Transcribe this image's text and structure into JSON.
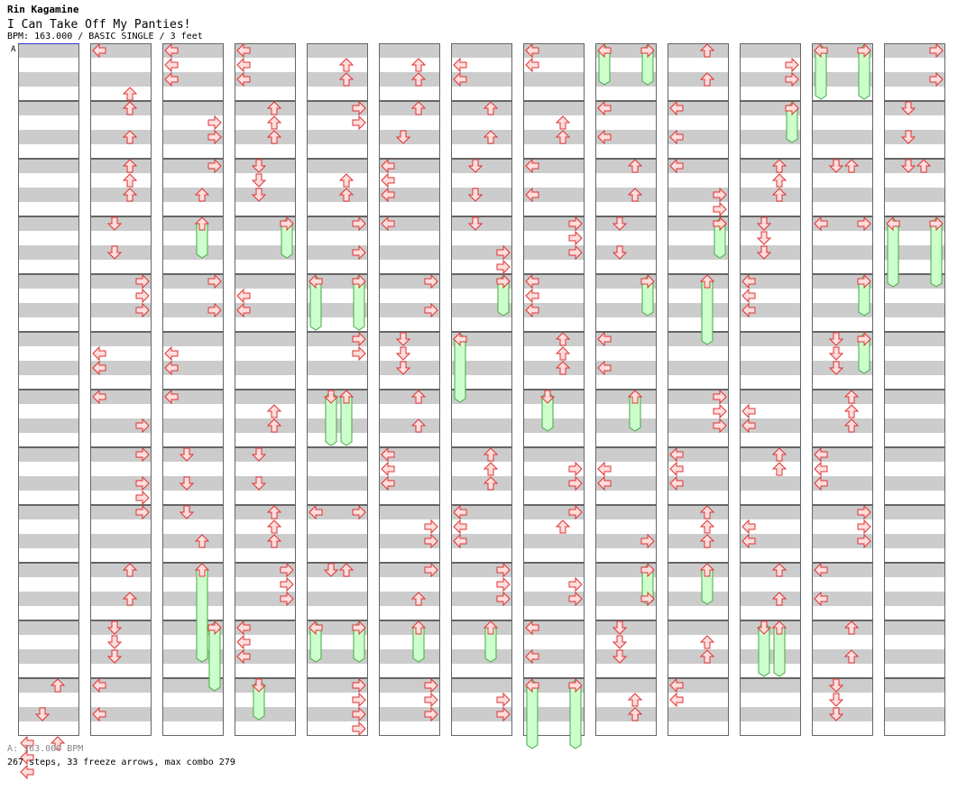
{
  "header": {
    "artist": "Rin Kagamine",
    "title": "I Can Take Off My Panties!",
    "info": "BPM: 163.000 / BASIC SINGLE / 3 feet"
  },
  "footer": {
    "bpm_legend": "A: 163.000 BPM",
    "summary": "267 steps, 33 freeze arrows, max combo 279"
  },
  "colors": {
    "band": "#cccccc",
    "arrow_fill": "#ffdddd",
    "arrow_stroke": "#dd3333",
    "freeze_fill": "#ccffcc",
    "freeze_stroke": "#44aa44",
    "bpm_line": "#3333cc"
  },
  "icons": {
    "left": "left-arrow-icon",
    "down": "down-arrow-icon",
    "up": "up-arrow-icon",
    "right": "right-arrow-icon",
    "freeze": "freeze-arrow-icon"
  },
  "bpm_marker": {
    "label": "A",
    "column": 0,
    "measure": 0
  },
  "columns": [
    {
      "notes": [
        [
          11,
          0,
          2
        ],
        [
          11,
          2,
          1
        ],
        [
          11,
          4,
          0
        ],
        [
          11,
          4,
          2
        ],
        [
          11,
          5,
          0
        ],
        [
          11,
          6,
          0
        ]
      ],
      "freezes": []
    },
    {
      "notes": [
        [
          0,
          0,
          0
        ],
        [
          0,
          3,
          2
        ],
        [
          1,
          0,
          2
        ],
        [
          1,
          2,
          2
        ],
        [
          2,
          0,
          2
        ],
        [
          2,
          1,
          2
        ],
        [
          2,
          2,
          2
        ],
        [
          3,
          0,
          1
        ],
        [
          3,
          2,
          1
        ],
        [
          4,
          0,
          3
        ],
        [
          4,
          1,
          3
        ],
        [
          4,
          2,
          3
        ],
        [
          5,
          1,
          0
        ],
        [
          5,
          2,
          0
        ],
        [
          6,
          0,
          0
        ],
        [
          6,
          2,
          3
        ],
        [
          7,
          0,
          3
        ],
        [
          7,
          2,
          3
        ],
        [
          7,
          3,
          3
        ],
        [
          8,
          0,
          3
        ],
        [
          9,
          0,
          2
        ],
        [
          9,
          2,
          2
        ],
        [
          10,
          0,
          1
        ],
        [
          10,
          1,
          1
        ],
        [
          10,
          2,
          1
        ],
        [
          11,
          0,
          0
        ],
        [
          11,
          2,
          0
        ]
      ],
      "freezes": []
    },
    {
      "notes": [
        [
          0,
          0,
          0
        ],
        [
          0,
          1,
          0
        ],
        [
          0,
          2,
          0
        ],
        [
          1,
          1,
          3
        ],
        [
          1,
          2,
          3
        ],
        [
          2,
          0,
          3
        ],
        [
          2,
          2,
          2
        ],
        [
          4,
          0,
          3
        ],
        [
          4,
          2,
          3
        ],
        [
          5,
          1,
          0
        ],
        [
          5,
          2,
          0
        ],
        [
          6,
          0,
          0
        ],
        [
          7,
          0,
          1
        ],
        [
          7,
          2,
          1
        ],
        [
          8,
          0,
          1
        ],
        [
          8,
          2,
          2
        ]
      ],
      "freezes": [
        [
          3,
          0,
          2,
          3,
          2
        ],
        [
          9,
          0,
          2,
          10,
          2
        ],
        [
          10,
          0,
          3,
          11,
          0
        ]
      ]
    },
    {
      "notes": [
        [
          0,
          0,
          0
        ],
        [
          0,
          1,
          0
        ],
        [
          0,
          2,
          0
        ],
        [
          1,
          0,
          2
        ],
        [
          1,
          1,
          2
        ],
        [
          1,
          2,
          2
        ],
        [
          2,
          0,
          1
        ],
        [
          2,
          1,
          1
        ],
        [
          2,
          2,
          1
        ],
        [
          4,
          1,
          0
        ],
        [
          4,
          2,
          0
        ],
        [
          6,
          1,
          2
        ],
        [
          6,
          2,
          2
        ],
        [
          7,
          0,
          1
        ],
        [
          7,
          2,
          1
        ],
        [
          8,
          0,
          2
        ],
        [
          8,
          1,
          2
        ],
        [
          8,
          2,
          2
        ],
        [
          9,
          0,
          3
        ],
        [
          9,
          1,
          3
        ],
        [
          9,
          2,
          3
        ],
        [
          10,
          0,
          0
        ],
        [
          10,
          1,
          0
        ],
        [
          10,
          2,
          0
        ]
      ],
      "freezes": [
        [
          3,
          0,
          3,
          3,
          2
        ],
        [
          11,
          0,
          1,
          11,
          2
        ]
      ]
    },
    {
      "notes": [
        [
          0,
          1,
          2
        ],
        [
          0,
          2,
          2
        ],
        [
          1,
          0,
          3
        ],
        [
          1,
          1,
          3
        ],
        [
          2,
          1,
          2
        ],
        [
          2,
          2,
          2
        ],
        [
          3,
          0,
          3
        ],
        [
          3,
          2,
          3
        ],
        [
          5,
          0,
          3
        ],
        [
          5,
          1,
          3
        ],
        [
          8,
          0,
          0
        ],
        [
          8,
          0,
          3
        ],
        [
          9,
          0,
          1
        ],
        [
          9,
          0,
          2
        ],
        [
          11,
          0,
          3
        ],
        [
          11,
          1,
          3
        ],
        [
          11,
          2,
          3
        ],
        [
          11,
          3,
          3
        ]
      ],
      "freezes": [
        [
          4,
          0,
          0,
          4,
          3
        ],
        [
          4,
          0,
          3,
          4,
          3
        ],
        [
          6,
          0,
          1,
          6,
          3
        ],
        [
          6,
          0,
          2,
          6,
          3
        ],
        [
          10,
          0,
          0,
          10,
          2
        ],
        [
          10,
          0,
          3,
          10,
          2
        ]
      ]
    },
    {
      "notes": [
        [
          0,
          1,
          2
        ],
        [
          0,
          2,
          2
        ],
        [
          1,
          0,
          2
        ],
        [
          1,
          2,
          1
        ],
        [
          2,
          0,
          0
        ],
        [
          2,
          1,
          0
        ],
        [
          2,
          2,
          0
        ],
        [
          3,
          0,
          0
        ],
        [
          4,
          0,
          3
        ],
        [
          4,
          2,
          3
        ],
        [
          5,
          0,
          1
        ],
        [
          5,
          1,
          1
        ],
        [
          5,
          2,
          1
        ],
        [
          6,
          0,
          2
        ],
        [
          6,
          2,
          2
        ],
        [
          7,
          0,
          0
        ],
        [
          7,
          1,
          0
        ],
        [
          7,
          2,
          0
        ],
        [
          8,
          1,
          3
        ],
        [
          8,
          2,
          3
        ],
        [
          9,
          0,
          3
        ],
        [
          9,
          2,
          2
        ],
        [
          11,
          0,
          3
        ],
        [
          11,
          1,
          3
        ],
        [
          11,
          2,
          3
        ]
      ],
      "freezes": [
        [
          10,
          0,
          2,
          10,
          2
        ]
      ]
    },
    {
      "notes": [
        [
          0,
          1,
          0
        ],
        [
          0,
          2,
          0
        ],
        [
          1,
          0,
          2
        ],
        [
          1,
          2,
          2
        ],
        [
          2,
          0,
          1
        ],
        [
          2,
          2,
          1
        ],
        [
          3,
          0,
          1
        ],
        [
          3,
          2,
          3
        ],
        [
          3,
          3,
          3
        ],
        [
          4,
          0,
          3
        ],
        [
          7,
          0,
          2
        ],
        [
          7,
          1,
          2
        ],
        [
          7,
          2,
          2
        ],
        [
          8,
          0,
          0
        ],
        [
          8,
          1,
          0
        ],
        [
          8,
          2,
          0
        ],
        [
          9,
          0,
          3
        ],
        [
          9,
          1,
          3
        ],
        [
          9,
          2,
          3
        ],
        [
          11,
          1,
          3
        ],
        [
          11,
          2,
          3
        ]
      ],
      "freezes": [
        [
          4,
          0,
          3,
          4,
          2
        ],
        [
          5,
          0,
          0,
          6,
          0
        ],
        [
          10,
          0,
          2,
          10,
          2
        ]
      ]
    },
    {
      "notes": [
        [
          0,
          0,
          0
        ],
        [
          0,
          1,
          0
        ],
        [
          1,
          1,
          2
        ],
        [
          1,
          2,
          2
        ],
        [
          2,
          0,
          0
        ],
        [
          2,
          2,
          0
        ],
        [
          3,
          0,
          3
        ],
        [
          3,
          1,
          3
        ],
        [
          3,
          2,
          3
        ],
        [
          4,
          0,
          0
        ],
        [
          4,
          1,
          0
        ],
        [
          4,
          2,
          0
        ],
        [
          5,
          0,
          2
        ],
        [
          5,
          1,
          2
        ],
        [
          5,
          2,
          2
        ],
        [
          7,
          1,
          3
        ],
        [
          7,
          2,
          3
        ],
        [
          8,
          0,
          3
        ],
        [
          8,
          1,
          2
        ],
        [
          9,
          1,
          3
        ],
        [
          9,
          2,
          3
        ],
        [
          10,
          0,
          0
        ],
        [
          10,
          2,
          0
        ]
      ],
      "freezes": [
        [
          6,
          0,
          1,
          6,
          2
        ],
        [
          11,
          0,
          0,
          12,
          0
        ],
        [
          11,
          0,
          3,
          12,
          0
        ]
      ]
    },
    {
      "notes": [
        [
          1,
          0,
          0
        ],
        [
          1,
          2,
          0
        ],
        [
          2,
          0,
          2
        ],
        [
          2,
          2,
          2
        ],
        [
          3,
          0,
          1
        ],
        [
          3,
          2,
          1
        ],
        [
          5,
          0,
          0
        ],
        [
          5,
          2,
          0
        ],
        [
          7,
          1,
          0
        ],
        [
          7,
          2,
          0
        ],
        [
          8,
          2,
          3
        ],
        [
          9,
          2,
          3
        ],
        [
          10,
          0,
          1
        ],
        [
          10,
          1,
          1
        ],
        [
          10,
          2,
          1
        ],
        [
          11,
          1,
          2
        ],
        [
          11,
          2,
          2
        ]
      ],
      "freezes": [
        [
          0,
          0,
          0,
          0,
          2
        ],
        [
          0,
          0,
          3,
          0,
          2
        ],
        [
          4,
          0,
          3,
          4,
          2
        ],
        [
          6,
          0,
          2,
          6,
          2
        ],
        [
          9,
          0,
          3,
          9,
          2
        ]
      ]
    },
    {
      "notes": [
        [
          0,
          0,
          2
        ],
        [
          0,
          2,
          2
        ],
        [
          1,
          0,
          0
        ],
        [
          1,
          2,
          0
        ],
        [
          2,
          0,
          0
        ],
        [
          2,
          2,
          3
        ],
        [
          2,
          3,
          3
        ],
        [
          3,
          0,
          3
        ],
        [
          6,
          0,
          3
        ],
        [
          6,
          1,
          3
        ],
        [
          6,
          2,
          3
        ],
        [
          7,
          0,
          0
        ],
        [
          7,
          1,
          0
        ],
        [
          7,
          2,
          0
        ],
        [
          8,
          0,
          2
        ],
        [
          8,
          1,
          2
        ],
        [
          8,
          2,
          2
        ],
        [
          10,
          1,
          2
        ],
        [
          10,
          2,
          2
        ],
        [
          11,
          0,
          0
        ],
        [
          11,
          1,
          0
        ]
      ],
      "freezes": [
        [
          3,
          0,
          3,
          3,
          2
        ],
        [
          4,
          0,
          2,
          5,
          0
        ],
        [
          9,
          0,
          2,
          9,
          2
        ]
      ]
    },
    {
      "notes": [
        [
          0,
          1,
          3
        ],
        [
          0,
          2,
          3
        ],
        [
          2,
          0,
          2
        ],
        [
          2,
          1,
          2
        ],
        [
          2,
          2,
          2
        ],
        [
          3,
          0,
          1
        ],
        [
          3,
          1,
          1
        ],
        [
          3,
          2,
          1
        ],
        [
          4,
          0,
          0
        ],
        [
          4,
          1,
          0
        ],
        [
          4,
          2,
          0
        ],
        [
          6,
          1,
          0
        ],
        [
          6,
          2,
          0
        ],
        [
          7,
          0,
          2
        ],
        [
          7,
          1,
          2
        ],
        [
          8,
          1,
          0
        ],
        [
          8,
          2,
          0
        ],
        [
          9,
          0,
          2
        ],
        [
          9,
          2,
          2
        ]
      ],
      "freezes": [
        [
          1,
          0,
          3,
          1,
          2
        ],
        [
          10,
          0,
          1,
          10,
          3
        ],
        [
          10,
          0,
          2,
          10,
          3
        ]
      ]
    },
    {
      "notes": [
        [
          2,
          0,
          1
        ],
        [
          2,
          0,
          2
        ],
        [
          3,
          0,
          0
        ],
        [
          3,
          0,
          3
        ],
        [
          5,
          0,
          1
        ],
        [
          5,
          1,
          1
        ],
        [
          5,
          2,
          1
        ],
        [
          6,
          0,
          2
        ],
        [
          6,
          1,
          2
        ],
        [
          6,
          2,
          2
        ],
        [
          7,
          0,
          0
        ],
        [
          7,
          1,
          0
        ],
        [
          7,
          2,
          0
        ],
        [
          8,
          0,
          3
        ],
        [
          8,
          1,
          3
        ],
        [
          8,
          2,
          3
        ],
        [
          9,
          0,
          0
        ],
        [
          9,
          2,
          0
        ],
        [
          10,
          0,
          2
        ],
        [
          10,
          2,
          2
        ],
        [
          11,
          0,
          1
        ],
        [
          11,
          1,
          1
        ],
        [
          11,
          2,
          1
        ]
      ],
      "freezes": [
        [
          0,
          0,
          0,
          0,
          3
        ],
        [
          0,
          0,
          3,
          0,
          3
        ],
        [
          4,
          0,
          3,
          4,
          2
        ],
        [
          5,
          0,
          3,
          5,
          2
        ]
      ]
    },
    {
      "notes": [
        [
          0,
          0,
          3
        ],
        [
          0,
          2,
          3
        ],
        [
          1,
          0,
          1
        ],
        [
          1,
          2,
          1
        ],
        [
          2,
          0,
          1
        ],
        [
          2,
          0,
          2
        ]
      ],
      "freezes": [
        [
          3,
          0,
          0,
          4,
          0
        ],
        [
          3,
          0,
          3,
          4,
          0
        ]
      ]
    }
  ]
}
